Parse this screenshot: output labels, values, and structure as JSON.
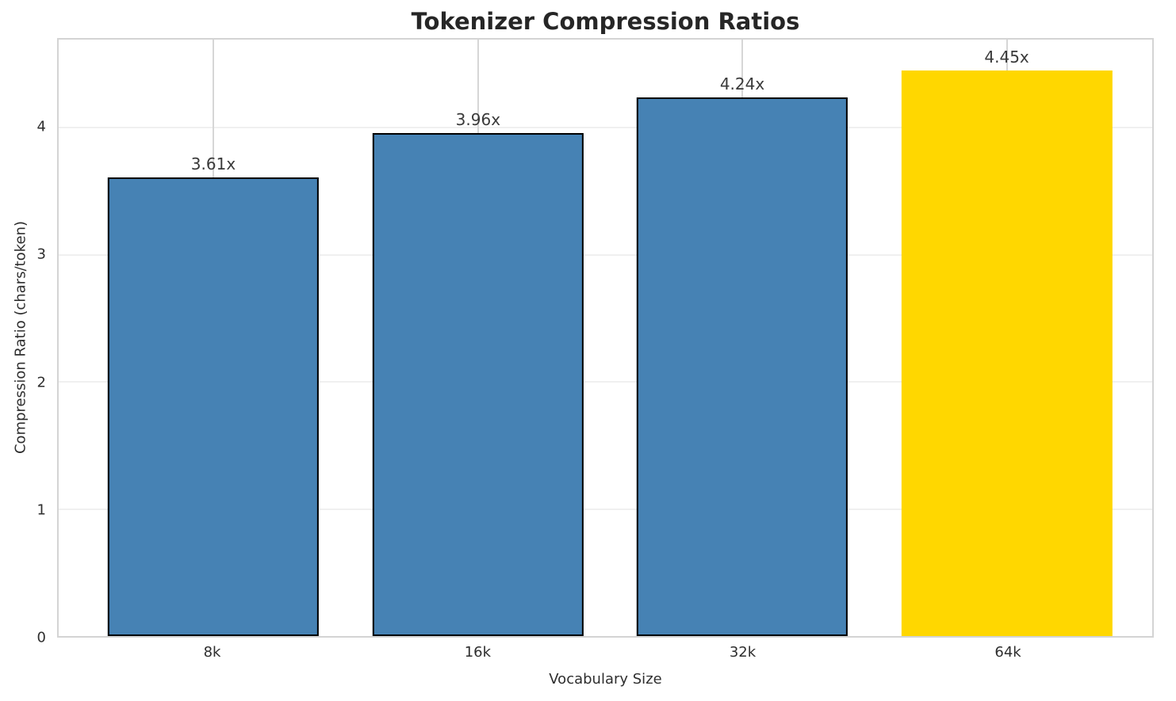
{
  "chart_data": {
    "type": "bar",
    "title": "Tokenizer Compression Ratios",
    "xlabel": "Vocabulary Size",
    "ylabel": "Compression Ratio (chars/token)",
    "categories": [
      "8k",
      "16k",
      "32k",
      "64k"
    ],
    "values": [
      3.61,
      3.96,
      4.24,
      4.45
    ],
    "bar_labels": [
      "3.61x",
      "3.96x",
      "4.24x",
      "4.45x"
    ],
    "yticks": [
      0,
      1,
      2,
      3,
      4
    ],
    "ylim": [
      0,
      4.695
    ],
    "grid": true,
    "legend": false,
    "highlight_index": 3,
    "bar_centers_frac": [
      0.1414,
      0.3835,
      0.6251,
      0.867
    ],
    "bar_width_frac": 0.1931,
    "colors": {
      "bar": "#4682B4",
      "highlight": "#FFD700",
      "bar_edge": "#000000",
      "grid_horizontal": "#f0f0f0",
      "grid_vertical": "#d6d6d6",
      "spine": "#d4d4d4",
      "title_text": "#262626",
      "label_text": "#2e2e2e"
    }
  }
}
